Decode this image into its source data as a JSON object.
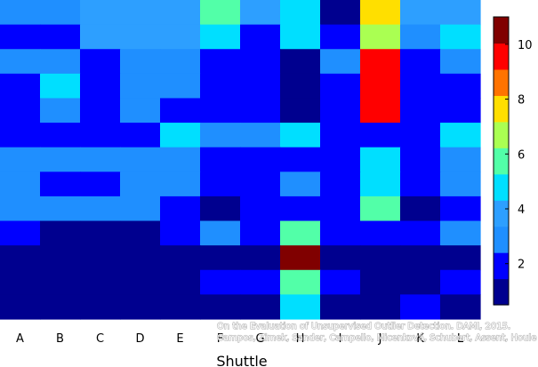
{
  "chart_data": {
    "type": "heatmap",
    "xlabel": "Shuttle",
    "ylabel": "",
    "categories": [
      "A",
      "B",
      "C",
      "D",
      "E",
      "F",
      "G",
      "H",
      "I",
      "J",
      "K",
      "L"
    ],
    "colorbar": {
      "range": [
        0.5,
        11
      ],
      "ticks": [
        2,
        4,
        6,
        8,
        10
      ],
      "colormap": "jet"
    },
    "rows": [
      [
        3,
        3,
        4,
        4,
        4,
        6,
        4,
        5,
        1,
        8,
        4,
        4
      ],
      [
        2,
        2,
        4,
        4,
        4,
        5,
        2,
        5,
        2,
        7,
        3,
        5
      ],
      [
        3,
        3,
        2,
        3,
        3,
        2,
        2,
        1,
        3,
        10,
        2,
        3
      ],
      [
        2,
        5,
        2,
        3,
        3,
        2,
        2,
        1,
        2,
        10,
        2,
        2
      ],
      [
        2,
        3,
        2,
        3,
        2,
        2,
        2,
        1,
        2,
        10,
        2,
        2
      ],
      [
        2,
        2,
        2,
        2,
        5,
        3,
        3,
        5,
        2,
        2,
        2,
        5
      ],
      [
        3,
        3,
        3,
        3,
        3,
        2,
        2,
        2,
        2,
        5,
        2,
        3
      ],
      [
        3,
        2,
        2,
        3,
        3,
        2,
        2,
        3,
        2,
        5,
        2,
        3
      ],
      [
        3,
        3,
        3,
        3,
        2,
        1,
        2,
        2,
        2,
        6,
        1,
        2
      ],
      [
        2,
        1,
        1,
        1,
        2,
        3,
        2,
        6,
        2,
        2,
        2,
        3
      ],
      [
        1,
        1,
        1,
        1,
        1,
        1,
        1,
        11,
        1,
        1,
        1,
        1
      ],
      [
        1,
        1,
        1,
        1,
        1,
        2,
        2,
        6,
        2,
        1,
        1,
        2
      ],
      [
        1,
        1,
        1,
        1,
        1,
        1,
        1,
        5,
        1,
        1,
        2,
        1
      ]
    ]
  },
  "credit": {
    "line1": "On the Evaluation of Unsupervised Outlier Detection. DAMI, 2015.",
    "line2": "Campos, Zimek, Sander, Campello, Micenková, Schubert, Assent, Houle"
  }
}
